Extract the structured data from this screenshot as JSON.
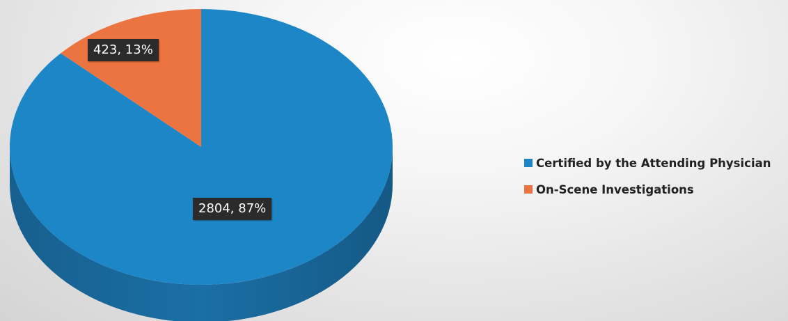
{
  "chart_data": {
    "type": "pie",
    "title": "",
    "slices": [
      {
        "label": "Certified by the Attending Physician",
        "value": 2804,
        "percent": 87,
        "color": "#1d86c7",
        "data_label": "2804, 87%"
      },
      {
        "label": "On-Scene Investigations",
        "value": 423,
        "percent": 13,
        "color": "#ec7440",
        "data_label": "423, 13%"
      }
    ],
    "legend_position": "right",
    "style": "3d"
  }
}
